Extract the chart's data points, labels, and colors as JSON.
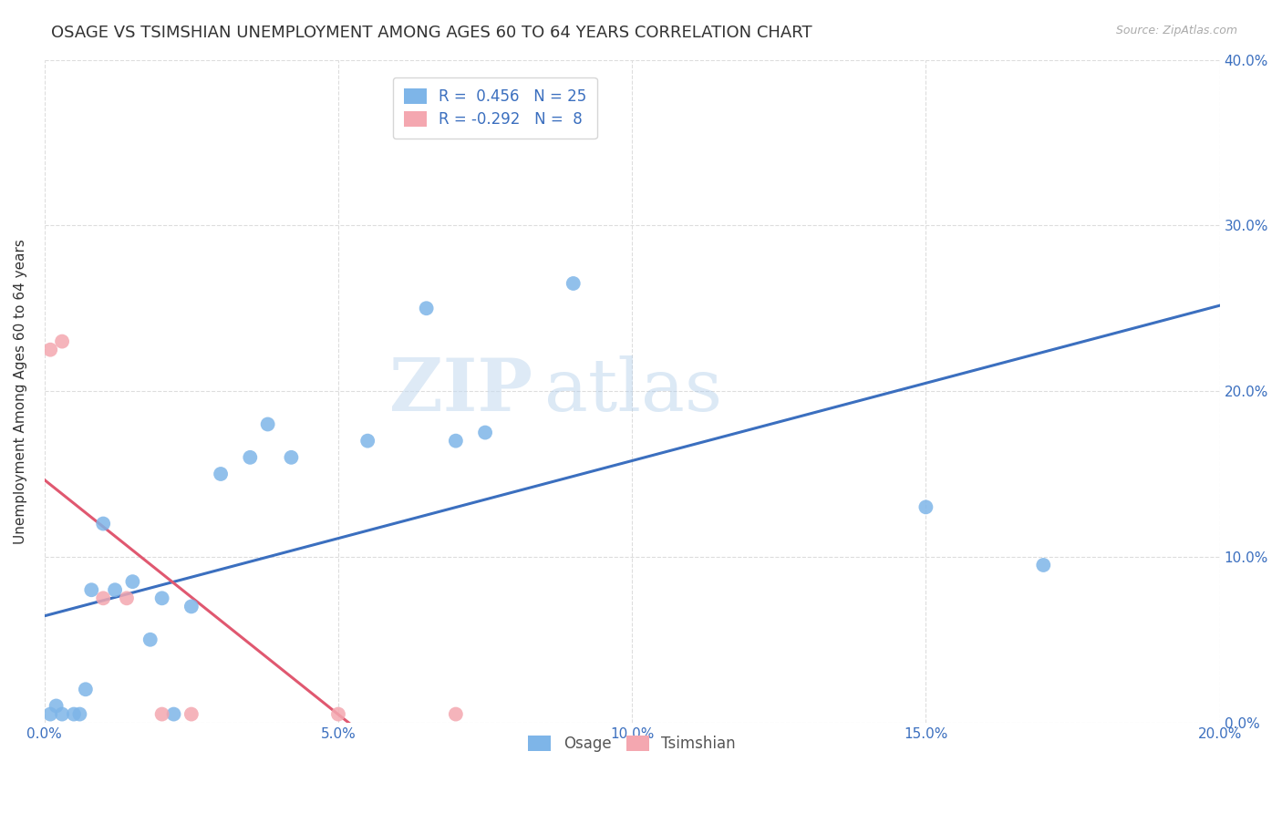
{
  "title": "OSAGE VS TSIMSHIAN UNEMPLOYMENT AMONG AGES 60 TO 64 YEARS CORRELATION CHART",
  "source": "Source: ZipAtlas.com",
  "ylabel": "Unemployment Among Ages 60 to 64 years",
  "xlim": [
    0.0,
    0.2
  ],
  "ylim": [
    0.0,
    0.4
  ],
  "xticks": [
    0.0,
    0.05,
    0.1,
    0.15,
    0.2
  ],
  "yticks": [
    0.0,
    0.1,
    0.2,
    0.3,
    0.4
  ],
  "xticklabels": [
    "0.0%",
    "5.0%",
    "10.0%",
    "15.0%",
    "20.0%"
  ],
  "yticklabels_right": [
    "0.0%",
    "10.0%",
    "20.0%",
    "30.0%",
    "40.0%"
  ],
  "osage_R": 0.456,
  "osage_N": 25,
  "tsimshian_R": -0.292,
  "tsimshian_N": 8,
  "osage_color": "#7EB5E8",
  "tsimshian_color": "#F4A7B0",
  "osage_line_color": "#3B6FBF",
  "tsimshian_line_color": "#E05870",
  "osage_x": [
    0.001,
    0.002,
    0.003,
    0.005,
    0.006,
    0.007,
    0.008,
    0.01,
    0.012,
    0.015,
    0.018,
    0.02,
    0.022,
    0.025,
    0.03,
    0.035,
    0.038,
    0.042,
    0.055,
    0.065,
    0.07,
    0.075,
    0.09,
    0.15,
    0.17
  ],
  "osage_y": [
    0.005,
    0.01,
    0.005,
    0.005,
    0.005,
    0.02,
    0.08,
    0.12,
    0.08,
    0.085,
    0.05,
    0.075,
    0.005,
    0.07,
    0.15,
    0.16,
    0.18,
    0.16,
    0.17,
    0.25,
    0.17,
    0.175,
    0.265,
    0.13,
    0.095
  ],
  "tsimshian_x": [
    0.001,
    0.003,
    0.01,
    0.014,
    0.02,
    0.025,
    0.05,
    0.07
  ],
  "tsimshian_y": [
    0.225,
    0.23,
    0.075,
    0.075,
    0.005,
    0.005,
    0.005,
    0.005
  ],
  "background_color": "#FFFFFF",
  "grid_color": "#DDDDDD",
  "watermark_zip": "ZIP",
  "watermark_atlas": "atlas",
  "legend_label_osage": "Osage",
  "legend_label_tsimshian": "Tsimshian"
}
